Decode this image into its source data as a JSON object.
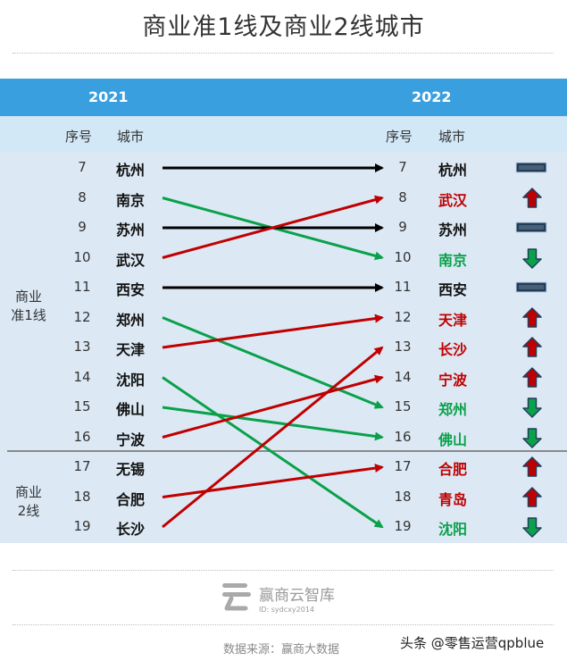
{
  "title": "商业准1线及商业2线城市",
  "years": {
    "left": "2021",
    "right": "2022"
  },
  "column_headers": {
    "rank": "序号",
    "city": "城市"
  },
  "groups": [
    {
      "label": "商业\n准1线"
    },
    {
      "label": "商业\n2线"
    }
  ],
  "watermark": {
    "name": "赢商云智库",
    "id": "ID: sydcxy2014"
  },
  "source": "数据来源：赢商大数据",
  "credit": "头条 @零售运营qpblue",
  "colors": {
    "up": "#c00000",
    "down": "#0aa14a",
    "flat": "#000000",
    "header_blue": "#3a9fde"
  },
  "chart_data": {
    "type": "slope",
    "left_year": "2021",
    "right_year": "2022",
    "rows_2021": [
      {
        "rank": "7",
        "city": "杭州"
      },
      {
        "rank": "8",
        "city": "南京"
      },
      {
        "rank": "9",
        "city": "苏州"
      },
      {
        "rank": "10",
        "city": "武汉"
      },
      {
        "rank": "11",
        "city": "西安"
      },
      {
        "rank": "12",
        "city": "郑州"
      },
      {
        "rank": "13",
        "city": "天津"
      },
      {
        "rank": "14",
        "city": "沈阳"
      },
      {
        "rank": "15",
        "city": "佛山"
      },
      {
        "rank": "16",
        "city": "宁波"
      },
      {
        "rank": "17",
        "city": "无锡"
      },
      {
        "rank": "18",
        "city": "合肥"
      },
      {
        "rank": "19",
        "city": "长沙"
      }
    ],
    "rows_2022": [
      {
        "rank": "7",
        "city": "杭州",
        "trend": "flat"
      },
      {
        "rank": "8",
        "city": "武汉",
        "trend": "up"
      },
      {
        "rank": "9",
        "city": "苏州",
        "trend": "flat"
      },
      {
        "rank": "10",
        "city": "南京",
        "trend": "down"
      },
      {
        "rank": "11",
        "city": "西安",
        "trend": "flat"
      },
      {
        "rank": "12",
        "city": "天津",
        "trend": "up"
      },
      {
        "rank": "13",
        "city": "长沙",
        "trend": "up"
      },
      {
        "rank": "14",
        "city": "宁波",
        "trend": "up"
      },
      {
        "rank": "15",
        "city": "郑州",
        "trend": "down"
      },
      {
        "rank": "16",
        "city": "佛山",
        "trend": "down"
      },
      {
        "rank": "17",
        "city": "合肥",
        "trend": "up"
      },
      {
        "rank": "18",
        "city": "青岛",
        "trend": "up"
      },
      {
        "rank": "19",
        "city": "沈阳",
        "trend": "down"
      }
    ],
    "movements": [
      {
        "city": "杭州",
        "from": 7,
        "to": 7,
        "trend": "flat"
      },
      {
        "city": "南京",
        "from": 8,
        "to": 10,
        "trend": "down"
      },
      {
        "city": "苏州",
        "from": 9,
        "to": 9,
        "trend": "flat"
      },
      {
        "city": "武汉",
        "from": 10,
        "to": 8,
        "trend": "up"
      },
      {
        "city": "西安",
        "from": 11,
        "to": 11,
        "trend": "flat"
      },
      {
        "city": "郑州",
        "from": 12,
        "to": 15,
        "trend": "down"
      },
      {
        "city": "天津",
        "from": 13,
        "to": 12,
        "trend": "up"
      },
      {
        "city": "沈阳",
        "from": 14,
        "to": 19,
        "trend": "down"
      },
      {
        "city": "佛山",
        "from": 15,
        "to": 16,
        "trend": "down"
      },
      {
        "city": "宁波",
        "from": 16,
        "to": 14,
        "trend": "up"
      },
      {
        "city": "合肥",
        "from": 18,
        "to": 17,
        "trend": "up"
      },
      {
        "city": "长沙",
        "from": 19,
        "to": 13,
        "trend": "up"
      }
    ]
  }
}
